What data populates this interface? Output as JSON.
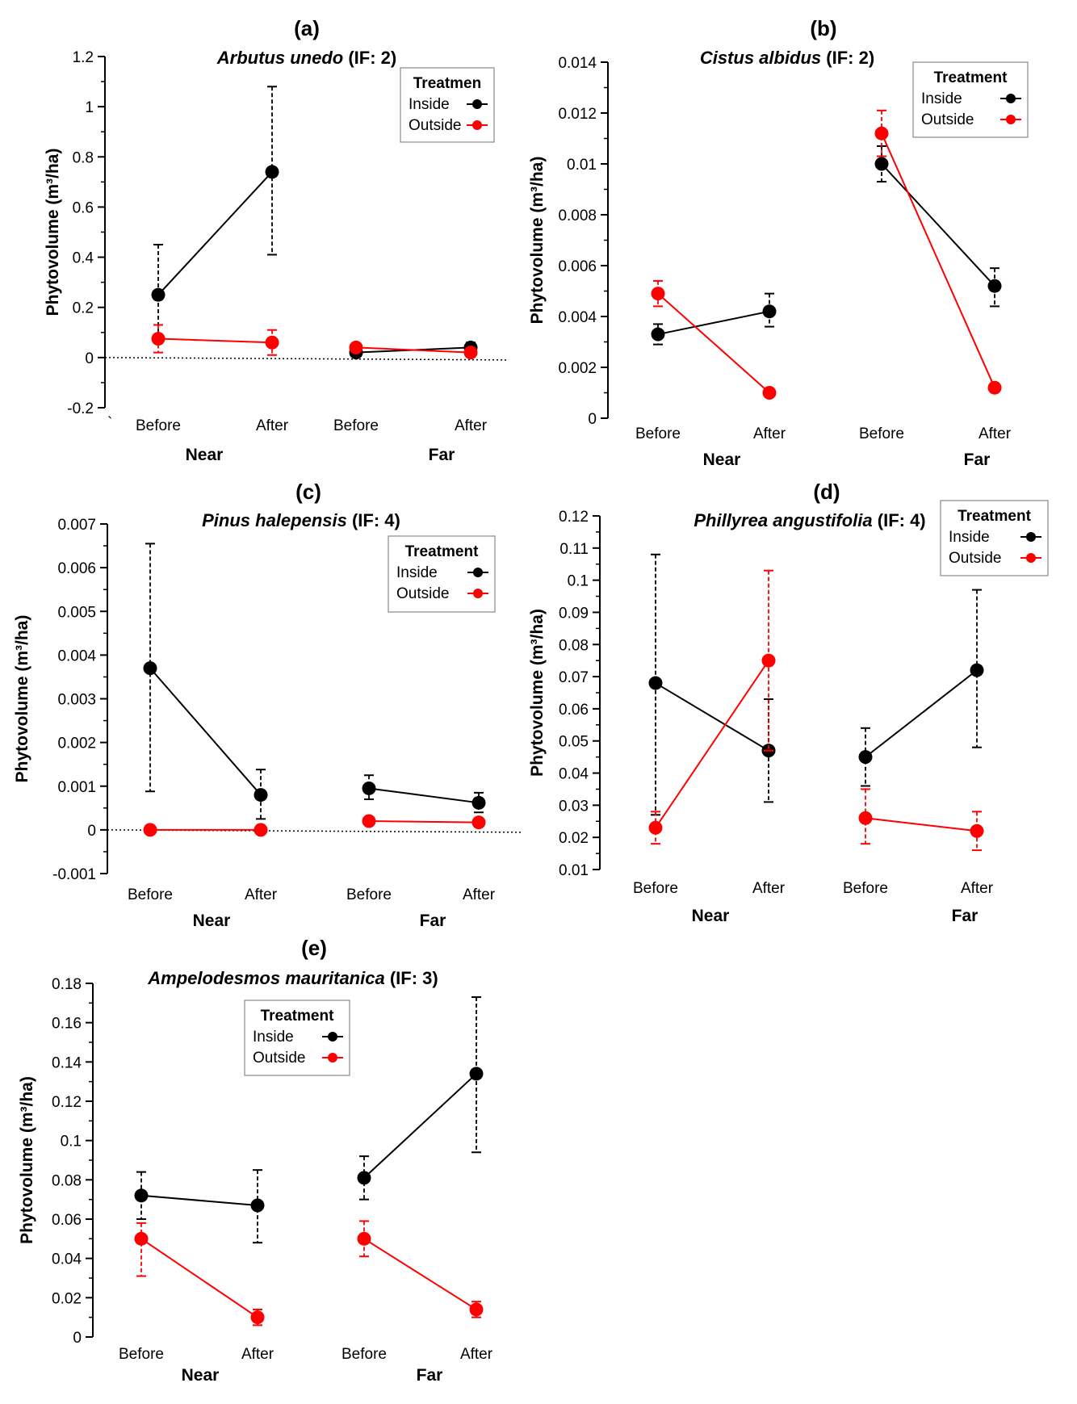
{
  "colors": {
    "inside": "#000000",
    "outside": "#ff0000"
  },
  "chart_data": [
    {
      "type": "line",
      "panel": "(a)",
      "species": "Arbutus unedo",
      "suffix": " (IF: 2)",
      "ylabel": "Phytovolume (m³/ha)",
      "ylim": [
        -0.2,
        1.2
      ],
      "yticks": [
        -0.2,
        0,
        0.2,
        0.4,
        0.6,
        0.8,
        1,
        1.2
      ],
      "ytick_labels": [
        "-0.2",
        "0",
        "0.2",
        "0.4",
        "0.6",
        "0.8",
        "1",
        "1.2"
      ],
      "categories": [
        "Before",
        "After",
        "Before",
        "After"
      ],
      "groups": [
        "Near",
        "Far"
      ],
      "zero_line": true,
      "stray_mark": "`",
      "legend": {
        "title": "Treatmen",
        "entries": [
          "Inside",
          "Outside"
        ]
      },
      "series": [
        {
          "name": "Inside",
          "values": [
            0.25,
            0.74,
            0.02,
            0.04
          ],
          "err_low": [
            0.06,
            0.41,
            0.005,
            0.02
          ],
          "err_high": [
            0.45,
            1.08,
            0.03,
            0.06
          ]
        },
        {
          "name": "Outside",
          "values": [
            0.075,
            0.06,
            0.04,
            0.02
          ],
          "err_low": [
            0.02,
            0.01,
            0.03,
            0.01
          ],
          "err_high": [
            0.13,
            0.11,
            0.05,
            0.03
          ]
        }
      ]
    },
    {
      "type": "line",
      "panel": "(b)",
      "species": "Cistus albidus",
      "suffix": " (IF: 2)",
      "ylabel": "Phytovolume (m³/ha)",
      "ylim": [
        0,
        0.014
      ],
      "yticks": [
        0,
        0.002,
        0.004,
        0.006,
        0.008,
        0.01,
        0.012,
        0.014
      ],
      "ytick_labels": [
        "0",
        "0.002",
        "0.004",
        "0.006",
        "0.008",
        "0.01",
        "0.012",
        "0.014"
      ],
      "categories": [
        "Before",
        "After",
        "Before",
        "After"
      ],
      "groups": [
        "Near",
        "Far"
      ],
      "zero_line": false,
      "legend": {
        "title": "Treatment",
        "entries": [
          "Inside",
          "Outside"
        ]
      },
      "series": [
        {
          "name": "Inside",
          "values": [
            0.0033,
            0.0042,
            0.01,
            0.0052
          ],
          "err_low": [
            0.0029,
            0.0036,
            0.0093,
            0.0044
          ],
          "err_high": [
            0.0037,
            0.0049,
            0.0107,
            0.0059
          ]
        },
        {
          "name": "Outside",
          "values": [
            0.0049,
            0.001,
            0.0112,
            0.0012
          ],
          "err_low": [
            0.0044,
            0.0009,
            0.0103,
            0.0011
          ],
          "err_high": [
            0.0054,
            0.0011,
            0.0121,
            0.0013
          ]
        }
      ]
    },
    {
      "type": "line",
      "panel": "(c)",
      "species": "Pinus halepensis",
      "suffix": " (IF: 4)",
      "ylabel": "Phytovolume (m³/ha)",
      "ylim": [
        -0.001,
        0.007
      ],
      "yticks": [
        -0.001,
        0,
        0.001,
        0.002,
        0.003,
        0.004,
        0.005,
        0.006,
        0.007
      ],
      "ytick_labels": [
        "-0.001",
        "0",
        "0.001",
        "0.002",
        "0.003",
        "0.004",
        "0.005",
        "0.006",
        "0.007"
      ],
      "categories": [
        "Before",
        "After",
        "Before",
        "After"
      ],
      "groups": [
        "Near",
        "Far"
      ],
      "zero_line": true,
      "legend": {
        "title": "Treatment",
        "entries": [
          "Inside",
          "Outside"
        ]
      },
      "series": [
        {
          "name": "Inside",
          "values": [
            0.0037,
            0.0008,
            0.00095,
            0.00062
          ],
          "err_low": [
            0.00088,
            0.00025,
            0.0007,
            0.0004
          ],
          "err_high": [
            0.00655,
            0.00138,
            0.00125,
            0.00085
          ]
        },
        {
          "name": "Outside",
          "values": [
            0.0,
            0.0,
            0.0002,
            0.00017
          ],
          "err_low": [
            -3e-05,
            -3e-05,
            0.00012,
            0.00012
          ],
          "err_high": [
            3e-05,
            3e-05,
            0.00028,
            0.00022
          ]
        }
      ]
    },
    {
      "type": "line",
      "panel": "(d)",
      "species": "Phillyrea angustifolia",
      "suffix": " (IF: 4)",
      "ylabel": "Phytovolume (m³/ha)",
      "ylim": [
        0.01,
        0.12
      ],
      "yticks": [
        0.01,
        0.02,
        0.03,
        0.04,
        0.05,
        0.06,
        0.07,
        0.08,
        0.09,
        0.1,
        0.11,
        0.12
      ],
      "ytick_labels": [
        "0.01",
        "0.02",
        "0.03",
        "0.04",
        "0.05",
        "0.06",
        "0.07",
        "0.08",
        "0.09",
        "0.1",
        "0.11",
        "0.12"
      ],
      "categories": [
        "Before",
        "After",
        "Before",
        "After"
      ],
      "groups": [
        "Near",
        "Far"
      ],
      "zero_line": false,
      "legend": {
        "title": "Treatment",
        "entries": [
          "Inside",
          "Outside"
        ]
      },
      "series": [
        {
          "name": "Inside",
          "values": [
            0.068,
            0.047,
            0.045,
            0.072
          ],
          "err_low": [
            0.027,
            0.031,
            0.036,
            0.048
          ],
          "err_high": [
            0.108,
            0.063,
            0.054,
            0.097
          ]
        },
        {
          "name": "Outside",
          "values": [
            0.023,
            0.075,
            0.026,
            0.022
          ],
          "err_low": [
            0.018,
            0.047,
            0.018,
            0.016
          ],
          "err_high": [
            0.028,
            0.103,
            0.035,
            0.028
          ]
        }
      ]
    },
    {
      "type": "line",
      "panel": "(e)",
      "species": "Ampelodesmos mauritanica",
      "suffix": " (IF: 3)",
      "ylabel": "Phytovolume (m³/ha)",
      "ylim": [
        0,
        0.18
      ],
      "yticks": [
        0,
        0.02,
        0.04,
        0.06,
        0.08,
        0.1,
        0.12,
        0.14,
        0.16,
        0.18
      ],
      "ytick_labels": [
        "0",
        "0.02",
        "0.04",
        "0.06",
        "0.08",
        "0.1",
        "0.12",
        "0.14",
        "0.16",
        "0.18"
      ],
      "categories": [
        "Before",
        "After",
        "Before",
        "After"
      ],
      "groups": [
        "Near",
        "Far"
      ],
      "zero_line": false,
      "legend": {
        "title": "Treatment",
        "entries": [
          "Inside",
          "Outside"
        ]
      },
      "series": [
        {
          "name": "Inside",
          "values": [
            0.072,
            0.067,
            0.081,
            0.134
          ],
          "err_low": [
            0.06,
            0.048,
            0.07,
            0.094
          ],
          "err_high": [
            0.084,
            0.085,
            0.092,
            0.173
          ]
        },
        {
          "name": "Outside",
          "values": [
            0.05,
            0.01,
            0.05,
            0.014
          ],
          "err_low": [
            0.031,
            0.006,
            0.041,
            0.01
          ],
          "err_high": [
            0.058,
            0.014,
            0.059,
            0.018
          ]
        }
      ]
    }
  ]
}
